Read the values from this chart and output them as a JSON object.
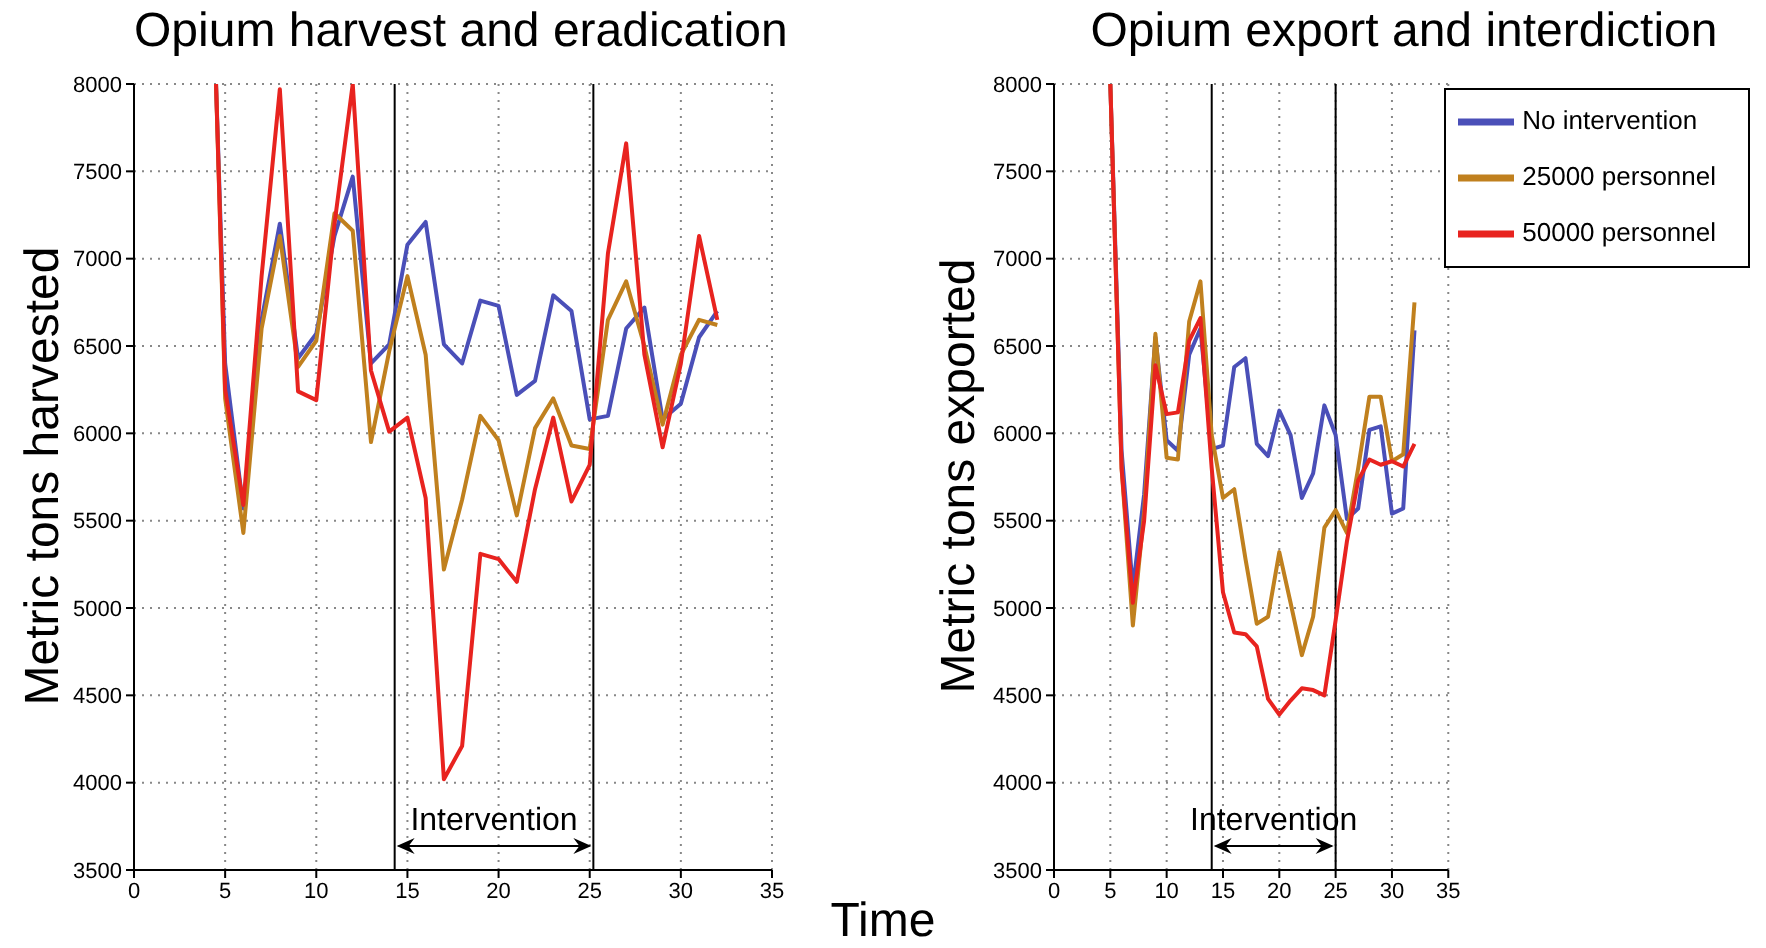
{
  "chart_data": [
    {
      "type": "line",
      "title": "Opium harvest and eradication",
      "ylabel": "Metric tons harvested",
      "xlabel": "Time",
      "x": [
        4.5,
        5,
        6,
        7,
        8,
        9,
        10,
        11,
        12,
        13,
        14,
        15,
        16,
        17,
        18,
        19,
        20,
        21,
        22,
        23,
        24,
        25,
        26,
        27,
        28,
        29,
        30,
        31,
        32
      ],
      "xlim": [
        0,
        35
      ],
      "xticks": [
        0,
        5,
        10,
        15,
        20,
        25,
        30,
        35
      ],
      "ylim": [
        3500,
        8000
      ],
      "yticks": [
        3500,
        4000,
        4500,
        5000,
        5500,
        6000,
        6500,
        7000,
        7500,
        8000
      ],
      "grid": true,
      "legend": false,
      "ref_lines": [
        {
          "axis": "x",
          "value": 14.3
        },
        {
          "axis": "x",
          "value": 25.2
        }
      ],
      "annotations": [
        "Intervention"
      ],
      "series": [
        {
          "color": "#4a4fb8",
          "values": [
            8000,
            6400,
            5570,
            6650,
            7200,
            6430,
            6570,
            7130,
            7470,
            6400,
            6510,
            7080,
            7210,
            6510,
            6400,
            6760,
            6730,
            6220,
            6300,
            6790,
            6700,
            6080,
            6100,
            6600,
            6720,
            6080,
            6170,
            6550,
            6700
          ]
        },
        {
          "color": "#c0801e",
          "values": [
            8000,
            6200,
            5430,
            6600,
            7130,
            6380,
            6530,
            7260,
            7160,
            5950,
            6470,
            6900,
            6450,
            5220,
            5620,
            6100,
            5960,
            5530,
            6030,
            6200,
            5930,
            5910,
            6650,
            6870,
            6500,
            6050,
            6450,
            6650,
            6620
          ]
        },
        {
          "color": "#e8231f",
          "values": [
            8000,
            6250,
            5590,
            6900,
            7970,
            6240,
            6190,
            7200,
            8000,
            6360,
            6010,
            6090,
            5630,
            4020,
            4210,
            5310,
            5280,
            5150,
            5680,
            6090,
            5610,
            5820,
            7030,
            7660,
            6450,
            5920,
            6400,
            7130,
            6650
          ]
        }
      ]
    },
    {
      "type": "line",
      "title": "Opium export and interdiction",
      "ylabel": "Metric tons exported",
      "x": [
        5,
        6,
        7,
        8,
        9,
        10,
        11,
        12,
        13,
        14,
        15,
        16,
        17,
        18,
        19,
        20,
        21,
        22,
        23,
        24,
        25,
        26,
        27,
        28,
        29,
        30,
        31,
        32
      ],
      "xlim": [
        0,
        35
      ],
      "xticks": [
        0,
        5,
        10,
        15,
        20,
        25,
        30,
        35
      ],
      "ylim": [
        3500,
        8000
      ],
      "yticks": [
        3500,
        4000,
        4500,
        5000,
        5500,
        6000,
        6500,
        7000,
        7500,
        8000
      ],
      "grid": true,
      "legend": "top right",
      "ref_lines": [
        {
          "axis": "x",
          "value": 14
        },
        {
          "axis": "x",
          "value": 25
        }
      ],
      "annotations": [
        "Intervention"
      ],
      "series": [
        {
          "name": "No intervention",
          "color": "#4a4fb8",
          "values": [
            8000,
            5900,
            5110,
            5650,
            6550,
            5960,
            5900,
            6450,
            6600,
            5910,
            5930,
            6380,
            6430,
            5940,
            5870,
            6130,
            5990,
            5630,
            5770,
            6160,
            5990,
            5510,
            5570,
            6020,
            6040,
            5540,
            5570,
            6590
          ]
        },
        {
          "name": "25000 personnel",
          "color": "#c0801e",
          "values": [
            8000,
            5800,
            4900,
            5550,
            6570,
            5860,
            5850,
            6640,
            6870,
            5990,
            5630,
            5680,
            5280,
            4910,
            4950,
            5320,
            5030,
            4730,
            4950,
            5460,
            5560,
            5430,
            5800,
            6210,
            6210,
            5840,
            5880,
            6750
          ]
        },
        {
          "name": "50000 personnel",
          "color": "#e8231f",
          "values": [
            8000,
            5800,
            5030,
            5500,
            6390,
            6110,
            6120,
            6530,
            6660,
            5800,
            5090,
            4860,
            4850,
            4780,
            4480,
            4390,
            4470,
            4540,
            4530,
            4500,
            4930,
            5380,
            5730,
            5850,
            5820,
            5840,
            5810,
            5940
          ]
        }
      ]
    }
  ]
}
